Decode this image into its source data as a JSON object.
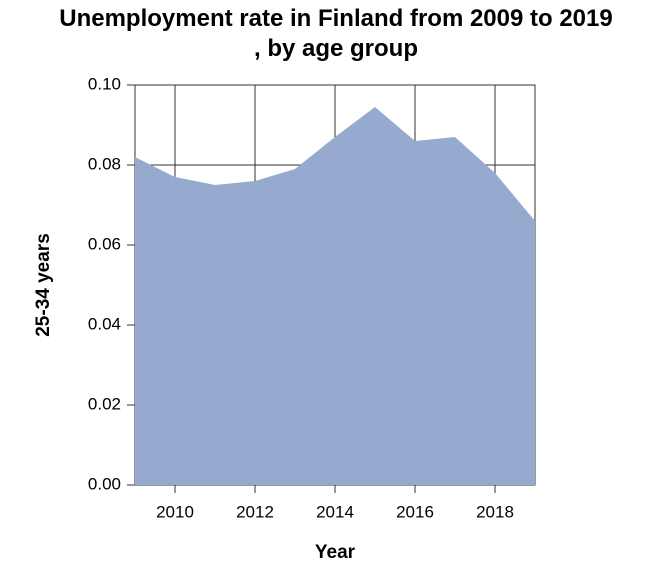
{
  "chart_data": {
    "type": "area",
    "title": "Unemployment rate in Finland from 2009 to 2019 , by age group",
    "x_label": "Year",
    "y_label": "25-34 years",
    "x": [
      2009,
      2010,
      2011,
      2012,
      2013,
      2014,
      2015,
      2016,
      2017,
      2018,
      2019
    ],
    "values": [
      0.082,
      0.077,
      0.075,
      0.076,
      0.079,
      0.087,
      0.0945,
      0.086,
      0.087,
      0.078,
      0.066
    ],
    "color": "#96aacf",
    "xlim": [
      2009,
      2019
    ],
    "xticks": [
      2010,
      2012,
      2014,
      2016,
      2018
    ],
    "ylim": [
      0,
      0.1
    ],
    "yticks": [
      {
        "value": 0,
        "label": "0.00"
      },
      {
        "value": 0.02,
        "label": "0.02"
      },
      {
        "value": 0.04,
        "label": "0.04"
      },
      {
        "value": 0.06,
        "label": "0.06"
      },
      {
        "value": 0.08,
        "label": "0.08"
      },
      {
        "value": 0.1,
        "label": "0.10"
      }
    ],
    "grid": true
  }
}
